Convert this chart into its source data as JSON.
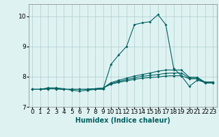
{
  "xlabel": "Humidex (Indice chaleur)",
  "background_color": "#dff2f2",
  "grid_color": "#aecece",
  "line_color": "#006060",
  "xlim": [
    -0.5,
    23.5
  ],
  "ylim": [
    7.0,
    10.4
  ],
  "xticks": [
    0,
    1,
    2,
    3,
    4,
    5,
    6,
    7,
    8,
    9,
    10,
    11,
    12,
    13,
    14,
    15,
    16,
    17,
    18,
    19,
    20,
    21,
    22,
    23
  ],
  "yticks": [
    7,
    8,
    9,
    10
  ],
  "main_line_x": [
    0,
    1,
    2,
    3,
    4,
    5,
    6,
    7,
    8,
    9,
    10,
    11,
    12,
    13,
    14,
    15,
    16,
    17,
    18,
    19,
    20,
    21,
    22,
    23
  ],
  "main_line_y": [
    7.58,
    7.58,
    7.63,
    7.63,
    7.6,
    7.55,
    7.52,
    7.55,
    7.58,
    7.58,
    8.4,
    8.72,
    9.0,
    9.72,
    9.78,
    9.82,
    10.05,
    9.72,
    8.28,
    8.02,
    7.68,
    7.88,
    7.82,
    7.82
  ],
  "line2_x": [
    0,
    1,
    2,
    3,
    4,
    5,
    6,
    7,
    8,
    9,
    10,
    11,
    12,
    13,
    14,
    15,
    16,
    17,
    18,
    19,
    20,
    21,
    22,
    23
  ],
  "line2_y": [
    7.58,
    7.58,
    7.6,
    7.6,
    7.58,
    7.58,
    7.58,
    7.58,
    7.6,
    7.62,
    7.8,
    7.88,
    7.95,
    8.02,
    8.07,
    8.12,
    8.18,
    8.22,
    8.22,
    8.22,
    7.98,
    7.98,
    7.82,
    7.82
  ],
  "line3_x": [
    0,
    1,
    2,
    3,
    4,
    5,
    6,
    7,
    8,
    9,
    10,
    11,
    12,
    13,
    14,
    15,
    16,
    17,
    18,
    19,
    20,
    21,
    22,
    23
  ],
  "line3_y": [
    7.58,
    7.58,
    7.6,
    7.6,
    7.58,
    7.58,
    7.58,
    7.58,
    7.6,
    7.62,
    7.77,
    7.84,
    7.9,
    7.96,
    8.01,
    8.04,
    8.07,
    8.11,
    8.12,
    8.12,
    7.95,
    7.95,
    7.8,
    7.8
  ],
  "line4_x": [
    0,
    1,
    2,
    3,
    4,
    5,
    6,
    7,
    8,
    9,
    10,
    11,
    12,
    13,
    14,
    15,
    16,
    17,
    18,
    19,
    20,
    21,
    22,
    23
  ],
  "line4_y": [
    7.58,
    7.58,
    7.6,
    7.6,
    7.58,
    7.58,
    7.58,
    7.58,
    7.6,
    7.62,
    7.75,
    7.81,
    7.86,
    7.91,
    7.95,
    7.97,
    7.99,
    8.02,
    8.03,
    8.03,
    7.93,
    7.93,
    7.79,
    7.79
  ],
  "marker": "D",
  "marker_size": 2.0,
  "line_width": 0.8,
  "xlabel_fontsize": 7,
  "tick_fontsize": 6.5
}
